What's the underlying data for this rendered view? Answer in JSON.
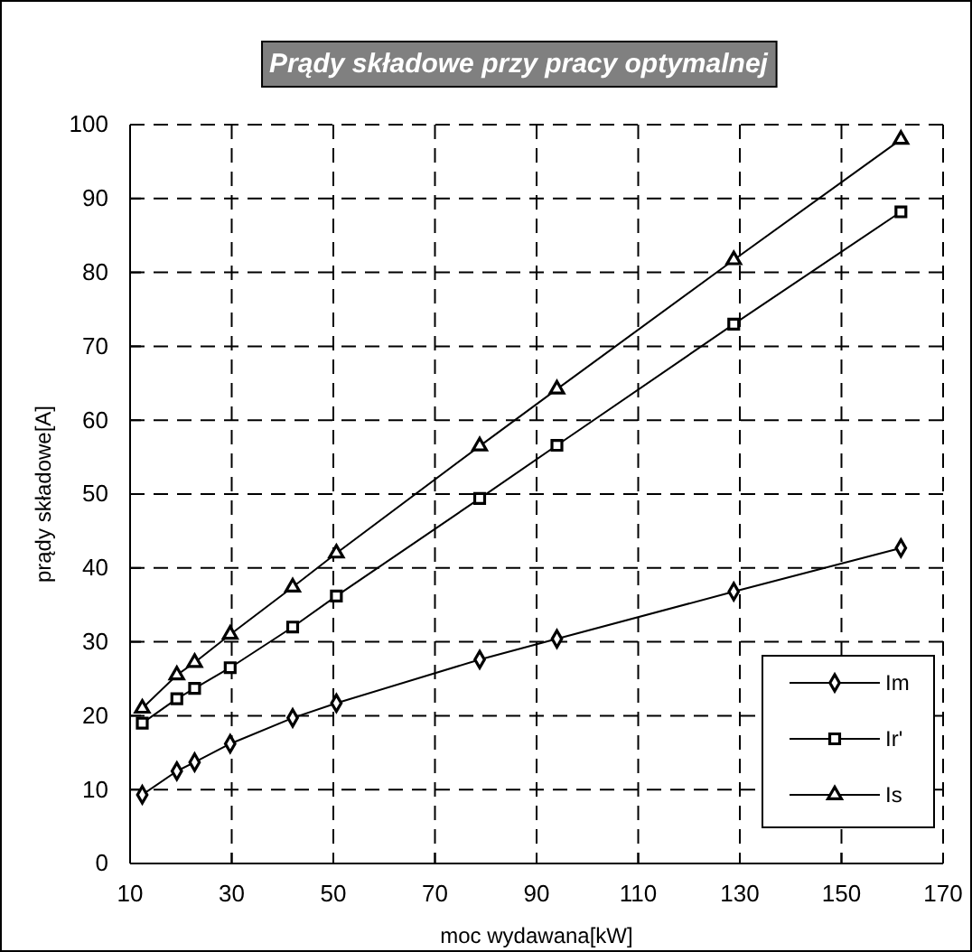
{
  "chart_data": {
    "type": "line",
    "title": "Prądy składowe przy pracy optymalnej",
    "xlabel": "moc wydawana[kW]",
    "ylabel": "prądy składowe[A]",
    "x": [
      12.4,
      19.2,
      22.7,
      29.7,
      42,
      50.6,
      78.8,
      94,
      128.8,
      161.7
    ],
    "series": [
      {
        "name": "Im",
        "color": "#000000",
        "marker": "diamond",
        "values": [
          9.3,
          12.5,
          13.7,
          16.2,
          19.7,
          21.7,
          27.6,
          30.4,
          36.8,
          42.7
        ]
      },
      {
        "name": "Ir'",
        "color": "#000000",
        "marker": "square",
        "values": [
          19,
          22.3,
          23.7,
          26.5,
          32,
          36.2,
          49.4,
          56.6,
          73,
          88.2
        ]
      },
      {
        "name": "Is",
        "color": "#000000",
        "marker": "triangle",
        "values": [
          21,
          25.5,
          27.2,
          31,
          37.4,
          42,
          56.5,
          64.2,
          81.7,
          98
        ]
      }
    ],
    "xlim": [
      10,
      170
    ],
    "xticks": [
      10,
      30,
      50,
      70,
      90,
      110,
      130,
      150,
      170
    ],
    "ylim": [
      0,
      100
    ],
    "yticks": [
      0,
      10,
      20,
      30,
      40,
      50,
      60,
      70,
      80,
      90,
      100
    ],
    "grid": true,
    "legend": "bottom right",
    "line_style": "solid"
  }
}
